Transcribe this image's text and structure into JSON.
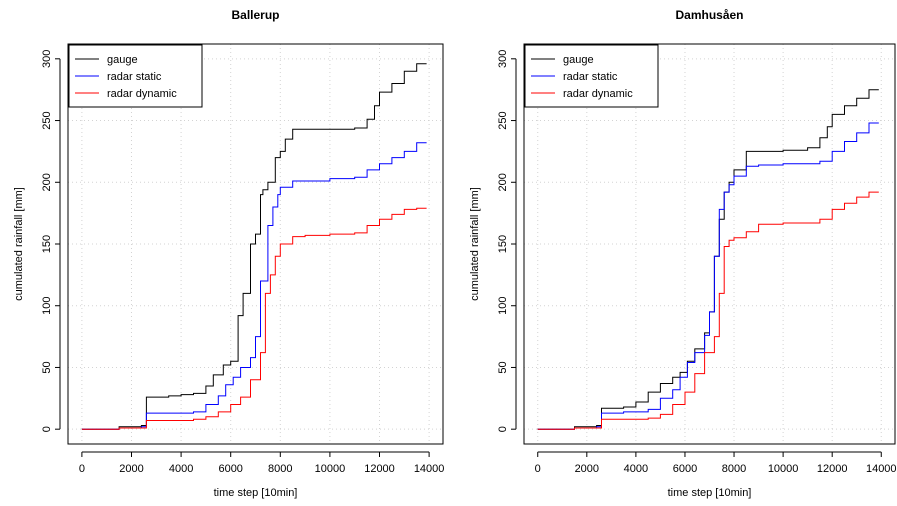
{
  "chart_data": [
    {
      "type": "line",
      "title": "Ballerup",
      "xlabel": "time step [10min]",
      "ylabel": "cumulated rainfall [mm]",
      "xlim": [
        0,
        14000
      ],
      "ylim": [
        0,
        300
      ],
      "xticks": [
        "0",
        "2000",
        "4000",
        "6000",
        "8000",
        "10000",
        "12000",
        "14000"
      ],
      "yticks": [
        "0",
        "50",
        "100",
        "150",
        "200",
        "250",
        "300"
      ],
      "grid": true,
      "legend_position": "top-left",
      "series": [
        {
          "name": "gauge",
          "color": "#000000",
          "x": [
            0,
            1500,
            2400,
            2600,
            3000,
            3500,
            4000,
            4500,
            5000,
            5300,
            5700,
            6000,
            6300,
            6500,
            6800,
            7000,
            7200,
            7300,
            7500,
            7800,
            8000,
            8200,
            8500,
            9000,
            10000,
            11000,
            11500,
            11800,
            12000,
            12500,
            13000,
            13500,
            13900
          ],
          "y": [
            0,
            2,
            3,
            26,
            26,
            27,
            28,
            29,
            35,
            44,
            52,
            55,
            92,
            110,
            150,
            158,
            190,
            194,
            200,
            220,
            225,
            235,
            243,
            243,
            243,
            244,
            251,
            262,
            273,
            280,
            290,
            296,
            296
          ]
        },
        {
          "name": "radar static",
          "color": "#0000ff",
          "x": [
            0,
            1500,
            2400,
            2600,
            3500,
            4500,
            5000,
            5500,
            5800,
            6100,
            6400,
            6800,
            7000,
            7200,
            7500,
            7700,
            7900,
            8000,
            8500,
            9000,
            10000,
            11000,
            11500,
            12000,
            12500,
            13000,
            13500,
            13900
          ],
          "y": [
            0,
            1,
            2,
            13,
            13,
            14,
            20,
            27,
            36,
            42,
            50,
            58,
            75,
            120,
            165,
            180,
            190,
            196,
            201,
            201,
            203,
            204,
            210,
            215,
            220,
            225,
            232,
            232
          ]
        },
        {
          "name": "radar dynamic",
          "color": "#ff0000",
          "x": [
            0,
            1500,
            2400,
            2600,
            3500,
            4500,
            5000,
            5500,
            6000,
            6400,
            6800,
            7200,
            7400,
            7600,
            7800,
            8000,
            8500,
            9000,
            10000,
            11000,
            11500,
            12000,
            12500,
            13000,
            13500,
            13900
          ],
          "y": [
            0,
            1,
            1,
            7,
            7,
            8,
            10,
            14,
            20,
            26,
            40,
            62,
            110,
            125,
            140,
            150,
            156,
            157,
            158,
            159,
            165,
            170,
            174,
            178,
            179,
            179
          ]
        }
      ]
    },
    {
      "type": "line",
      "title": "Damhusåen",
      "xlabel": "time step [10min]",
      "ylabel": "cumulated rainfall [mm]",
      "xlim": [
        0,
        14000
      ],
      "ylim": [
        0,
        300
      ],
      "xticks": [
        "0",
        "2000",
        "4000",
        "6000",
        "8000",
        "10000",
        "12000",
        "14000"
      ],
      "yticks": [
        "0",
        "50",
        "100",
        "150",
        "200",
        "250",
        "300"
      ],
      "grid": true,
      "legend_position": "top-left",
      "series": [
        {
          "name": "gauge",
          "color": "#000000",
          "x": [
            0,
            1500,
            2400,
            2600,
            3500,
            4000,
            4500,
            5000,
            5500,
            5800,
            6100,
            6400,
            6800,
            7000,
            7200,
            7400,
            7600,
            7800,
            8000,
            8500,
            9000,
            10000,
            11000,
            11500,
            11800,
            12000,
            12500,
            13000,
            13500,
            13900
          ],
          "y": [
            0,
            2,
            3,
            17,
            18,
            22,
            30,
            37,
            42,
            46,
            55,
            65,
            78,
            95,
            140,
            170,
            192,
            200,
            210,
            225,
            225,
            226,
            228,
            236,
            245,
            255,
            262,
            268,
            275,
            275
          ]
        },
        {
          "name": "radar static",
          "color": "#0000ff",
          "x": [
            0,
            1500,
            2400,
            2600,
            3500,
            4500,
            5000,
            5500,
            5800,
            6100,
            6400,
            6800,
            7000,
            7200,
            7400,
            7600,
            7800,
            8000,
            8500,
            9000,
            10000,
            11000,
            11500,
            12000,
            12500,
            13000,
            13500,
            13900
          ],
          "y": [
            0,
            1,
            2,
            13,
            14,
            16,
            25,
            32,
            42,
            54,
            62,
            76,
            95,
            140,
            178,
            192,
            198,
            205,
            213,
            214,
            215,
            215,
            217,
            225,
            233,
            240,
            248,
            248
          ]
        },
        {
          "name": "radar dynamic",
          "color": "#ff0000",
          "x": [
            0,
            1500,
            2400,
            2600,
            3500,
            4500,
            5000,
            5500,
            6000,
            6400,
            6800,
            7200,
            7400,
            7600,
            7800,
            8000,
            8500,
            9000,
            10000,
            11000,
            11500,
            12000,
            12500,
            13000,
            13500,
            13900
          ],
          "y": [
            0,
            1,
            1,
            8,
            8,
            9,
            12,
            20,
            30,
            45,
            62,
            75,
            110,
            148,
            153,
            155,
            160,
            166,
            167,
            167,
            170,
            178,
            183,
            188,
            192,
            192
          ]
        }
      ]
    }
  ]
}
